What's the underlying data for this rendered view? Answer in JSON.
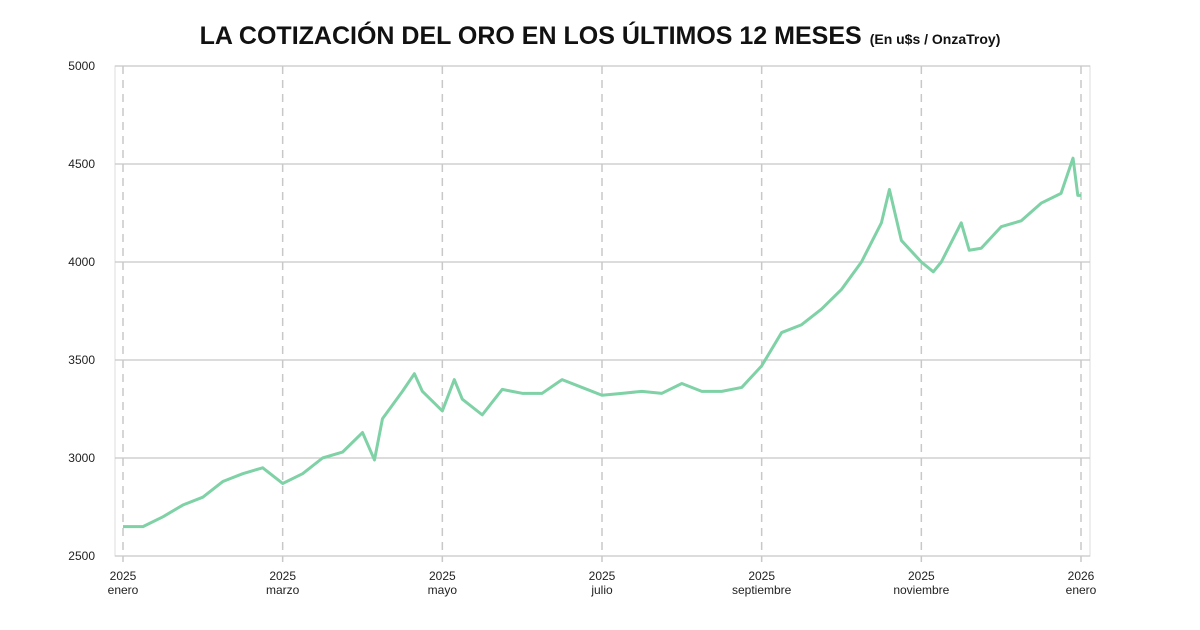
{
  "chart_data": {
    "type": "line",
    "title": "LA COTIZACIÓN DEL ORO EN LOS ÚLTIMOS 12 MESES",
    "subtitle": "(En u$s / OnzaTroy)",
    "x": [
      0,
      0.25,
      0.5,
      0.75,
      1,
      1.25,
      1.5,
      1.75,
      2,
      2.25,
      2.5,
      2.75,
      3,
      3.15,
      3.25,
      3.5,
      3.65,
      3.75,
      4,
      4.15,
      4.25,
      4.5,
      4.75,
      5,
      5.25,
      5.5,
      5.75,
      6,
      6.25,
      6.5,
      6.75,
      7,
      7.25,
      7.5,
      7.75,
      8,
      8.25,
      8.5,
      8.75,
      9,
      9.25,
      9.5,
      9.6,
      9.75,
      10,
      10.15,
      10.25,
      10.5,
      10.6,
      10.75,
      11,
      11.25,
      11.5,
      11.75,
      11.9,
      11.96,
      12
    ],
    "series": [
      {
        "name": "Oro",
        "color": "#7fd1a6",
        "values": [
          2650,
          2650,
          2700,
          2760,
          2800,
          2880,
          2920,
          2950,
          2870,
          2920,
          3000,
          3030,
          3130,
          2990,
          3200,
          3340,
          3430,
          3340,
          3240,
          3400,
          3300,
          3220,
          3350,
          3330,
          3330,
          3400,
          3360,
          3320,
          3330,
          3340,
          3330,
          3380,
          3340,
          3340,
          3360,
          3470,
          3640,
          3680,
          3760,
          3860,
          4000,
          4200,
          4370,
          4110,
          4000,
          3950,
          4000,
          4200,
          4060,
          4070,
          4180,
          4210,
          4300,
          4350,
          4530,
          4340,
          4340
        ]
      }
    ],
    "xlim": [
      0,
      12
    ],
    "xticks": [
      {
        "value": 0,
        "label": "2025 enero"
      },
      {
        "value": 2,
        "label": "2025 marzo"
      },
      {
        "value": 4,
        "label": "2025 mayo"
      },
      {
        "value": 6,
        "label": "2025 julio"
      },
      {
        "value": 8,
        "label": "2025 septiembre"
      },
      {
        "value": 10,
        "label": "2025 noviembre"
      },
      {
        "value": 12,
        "label": "2026 enero"
      }
    ],
    "ylim": [
      2500,
      5000
    ],
    "yticks": [
      2500,
      3000,
      3500,
      4000,
      4500,
      5000
    ],
    "grid": true
  }
}
